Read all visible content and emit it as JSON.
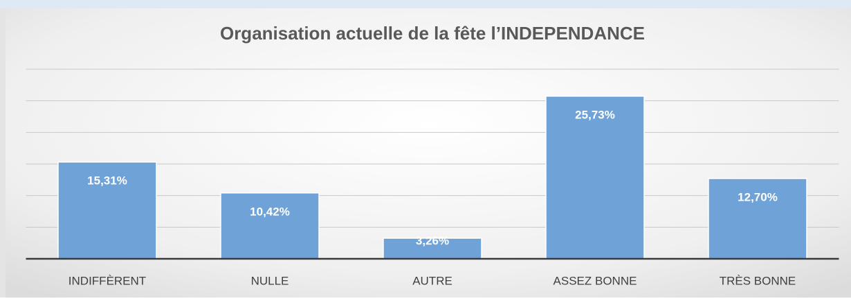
{
  "chart_data": {
    "type": "bar",
    "title": "Organisation  actuelle  de la fête l’INDEPENDANCE",
    "categories": [
      "INDIFFÈRENT",
      "NULLE",
      "AUTRE",
      "ASSEZ BONNE",
      "TRÈS BONNE"
    ],
    "values": [
      15.31,
      10.42,
      3.26,
      25.73,
      12.7
    ],
    "value_labels": [
      "15,31%",
      "10,42%",
      "3,26%",
      "25,73%",
      "12,70%"
    ],
    "color": "#6fa2d6",
    "ylim": [
      0,
      30
    ],
    "yticks": [
      0,
      5,
      10,
      15,
      20,
      25,
      30
    ],
    "grid": true
  }
}
